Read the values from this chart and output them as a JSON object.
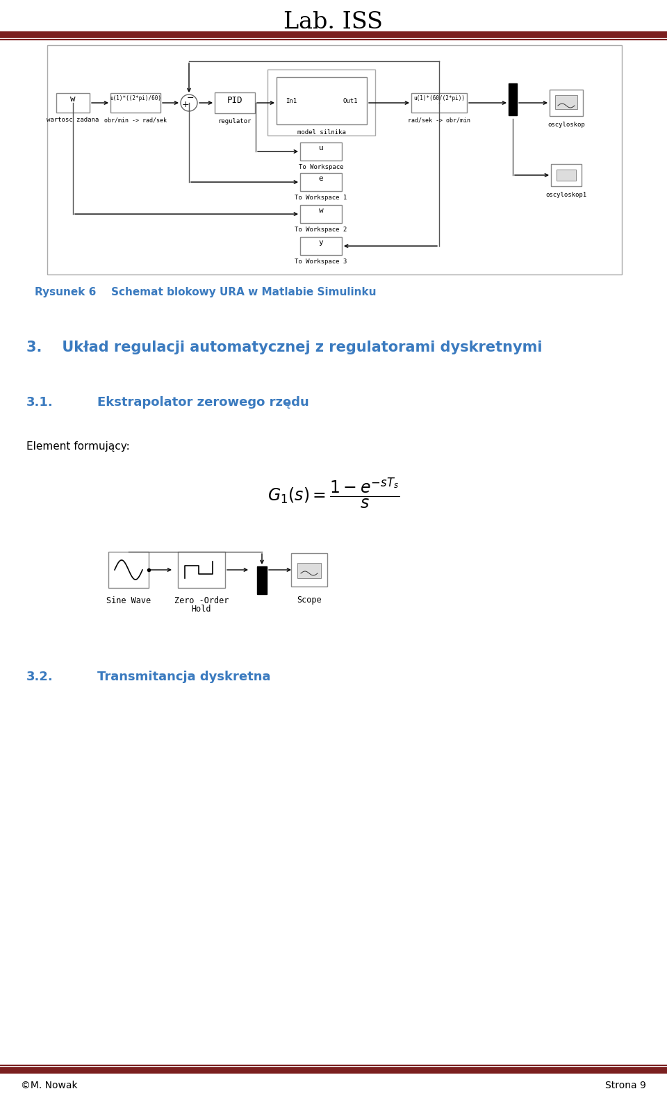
{
  "title": "Lab. ISS",
  "title_color": "#000000",
  "header_line_color": "#7B2020",
  "bg_color": "#ffffff",
  "section3_text": "3.",
  "section3_rest": "Układ regulacji automatycznej z regulatorami dyskretnymi",
  "section31_num": "3.1.",
  "section31_rest": "Ekstrapolator zerowego rzędu",
  "section32_num": "3.2.",
  "section32_rest": "Transmitancja dyskretna",
  "rysunek_label": "Rysunek 6",
  "rysunek_caption": "Schemat blokowy URA w Matlabie Simulinku",
  "element_text": "Element formujący:",
  "footer_left": "©M. Nowak",
  "footer_right": "Strona 9",
  "blue_color": "#3a7abf",
  "block_border": "#888888"
}
